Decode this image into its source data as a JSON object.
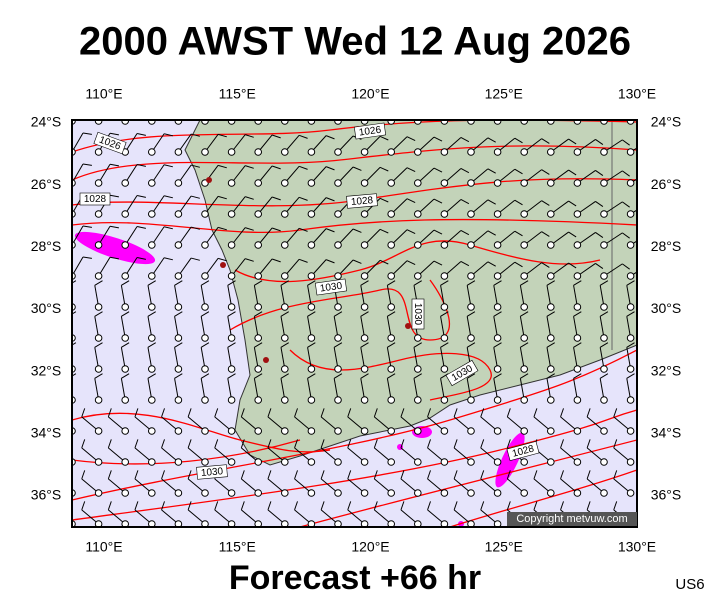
{
  "title": "2000 AWST Wed 12 Aug 2026",
  "footer": "Forecast +66 hr",
  "code": "US6",
  "copyright": "Copyright metvuw.com",
  "lon_ticks": [
    {
      "value": 110,
      "label": "110°E"
    },
    {
      "value": 115,
      "label": "115°E"
    },
    {
      "value": 120,
      "label": "120°E"
    },
    {
      "value": 125,
      "label": "125°E"
    },
    {
      "value": 130,
      "label": "130°E"
    }
  ],
  "lat_ticks": [
    {
      "value": -24,
      "label": "24°S"
    },
    {
      "value": -26,
      "label": "26°S"
    },
    {
      "value": -28,
      "label": "28°S"
    },
    {
      "value": -30,
      "label": "30°S"
    },
    {
      "value": -32,
      "label": "32°S"
    },
    {
      "value": -34,
      "label": "34°S"
    },
    {
      "value": -36,
      "label": "36°S"
    }
  ],
  "isobar_labels": [
    "1026",
    "1026",
    "1028",
    "1028",
    "1030",
    "1030",
    "1030",
    "1030",
    "1028"
  ]
}
